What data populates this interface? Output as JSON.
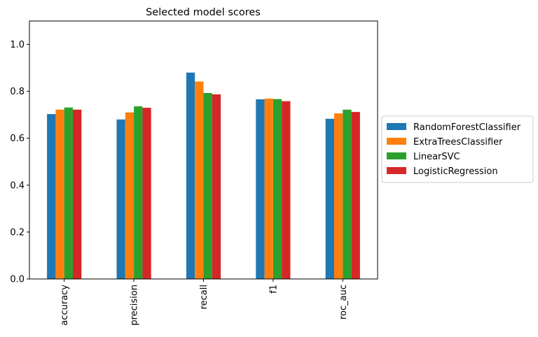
{
  "chart_data": {
    "type": "bar",
    "title": "Selected model scores",
    "xlabel": "",
    "ylabel": "",
    "categories": [
      "accuracy",
      "precision",
      "recall",
      "f1",
      "roc_auc"
    ],
    "ylim": [
      0,
      1.1
    ],
    "yticks": [
      "0.0",
      "0.2",
      "0.4",
      "0.6",
      "0.8",
      "1.0"
    ],
    "grid": false,
    "legend_position": "right",
    "series": [
      {
        "name": "RandomForestClassifier",
        "color": "#1f77b4",
        "values": [
          0.703,
          0.68,
          0.88,
          0.766,
          0.683
        ]
      },
      {
        "name": "ExtraTreesClassifier",
        "color": "#ff7f0e",
        "values": [
          0.722,
          0.71,
          0.842,
          0.769,
          0.706
        ]
      },
      {
        "name": "LinearSVC",
        "color": "#2ca02c",
        "values": [
          0.731,
          0.736,
          0.793,
          0.767,
          0.722
        ]
      },
      {
        "name": "LogisticRegression",
        "color": "#d62728",
        "values": [
          0.722,
          0.73,
          0.787,
          0.758,
          0.712
        ]
      }
    ]
  }
}
